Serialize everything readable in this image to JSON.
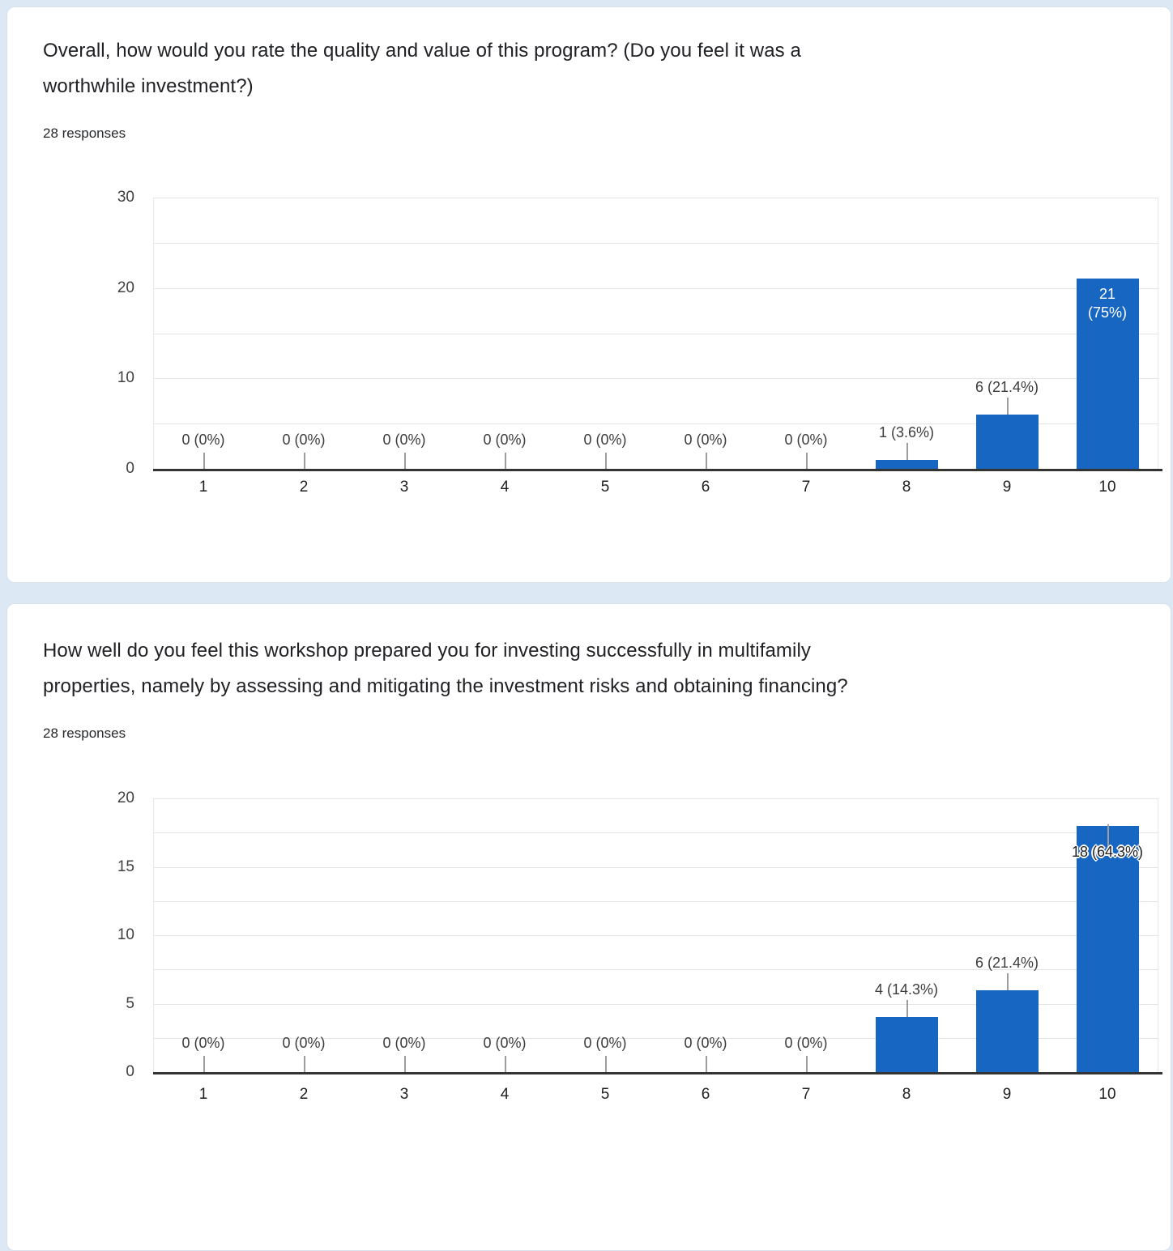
{
  "colors": {
    "bar": "#1766c1",
    "page_background": "#dde8f5",
    "card_background": "#ffffff"
  },
  "cards": [
    {
      "title_lines": [
        "Overall, how would you rate the quality and value of this program? (Do you feel it was a",
        "worthwhile investment?)"
      ],
      "responses": "28 responses"
    },
    {
      "title_lines": [
        "How well do you feel this workshop prepared you for investing successfully in multifamily",
        "properties, namely by assessing and mitigating the investment risks and obtaining financing?"
      ],
      "responses": "28 responses"
    }
  ],
  "chart_data": [
    {
      "type": "bar",
      "title": "Overall, how would you rate the quality and value of this program? (Do you feel it was a worthwhile investment?)",
      "categories": [
        "1",
        "2",
        "3",
        "4",
        "5",
        "6",
        "7",
        "8",
        "9",
        "10"
      ],
      "values": [
        0,
        0,
        0,
        0,
        0,
        0,
        0,
        1,
        6,
        21
      ],
      "bar_labels": [
        "0 (0%)",
        "0 (0%)",
        "0 (0%)",
        "0 (0%)",
        "0 (0%)",
        "0 (0%)",
        "0 (0%)",
        "1 (3.6%)",
        "6 (21.4%)",
        "21 (75%)"
      ],
      "xlabel": "",
      "ylabel": "",
      "ylim": [
        0,
        30
      ],
      "y_ticks": [
        0,
        10,
        20,
        30
      ],
      "grid_step": 5,
      "grid": true,
      "legend": "none"
    },
    {
      "type": "bar",
      "title": "How well do you feel this workshop prepared you for investing successfully in multifamily properties, namely by assessing and mitigating the investment risks and obtaining financing?",
      "categories": [
        "1",
        "2",
        "3",
        "4",
        "5",
        "6",
        "7",
        "8",
        "9",
        "10"
      ],
      "values": [
        0,
        0,
        0,
        0,
        0,
        0,
        0,
        4,
        6,
        18
      ],
      "bar_labels": [
        "0 (0%)",
        "0 (0%)",
        "0 (0%)",
        "0 (0%)",
        "0 (0%)",
        "0 (0%)",
        "0 (0%)",
        "4 (14.3%)",
        "6 (21.4%)",
        "18 (64.3%)"
      ],
      "xlabel": "",
      "ylabel": "",
      "ylim": [
        0,
        20
      ],
      "y_ticks": [
        0,
        5,
        10,
        15,
        20
      ],
      "grid_step": 2.5,
      "grid": true,
      "legend": "none"
    }
  ]
}
